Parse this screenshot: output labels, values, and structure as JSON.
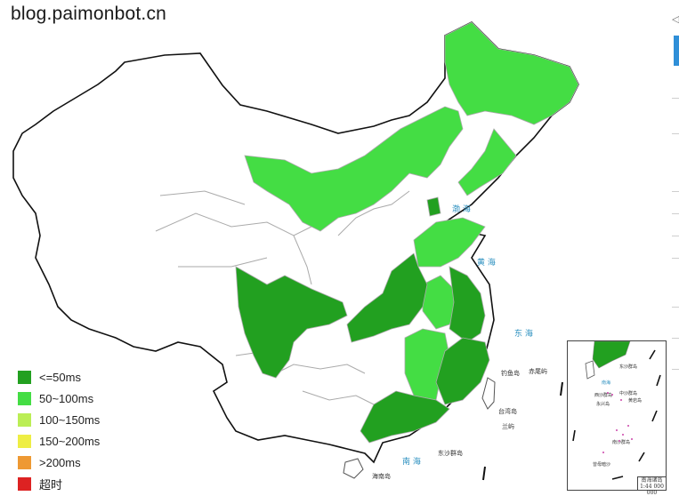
{
  "watermark": "blog.paimonbot.cn",
  "legend": [
    {
      "label": "<=50ms",
      "color": "#22a020"
    },
    {
      "label": "50~100ms",
      "color": "#44dd44"
    },
    {
      "label": "100~150ms",
      "color": "#bbee55"
    },
    {
      "label": "150~200ms",
      "color": "#eeee44"
    },
    {
      "label": ">200ms",
      "color": "#ee9933"
    },
    {
      "label": "超时",
      "color": "#dd2222"
    }
  ],
  "seas": {
    "bohai": "渤 海",
    "huanghai": "黄 海",
    "donghai": "东 海",
    "nanhai": "南 海"
  },
  "islands": {
    "taiwan": "台湾岛",
    "hainan": "海南岛",
    "dongsha": "东沙群岛",
    "diaoyu": "钓鱼岛",
    "chiwei": "赤尾屿",
    "lanyu": "兰屿"
  },
  "inset": {
    "title": "南海诸岛",
    "scale": "1:44 000 000",
    "labels": [
      "东沙群岛",
      "南海",
      "西沙群岛",
      "中沙群岛",
      "黄岩岛",
      "永兴岛",
      "南沙群岛",
      "曾母暗沙"
    ]
  }
}
